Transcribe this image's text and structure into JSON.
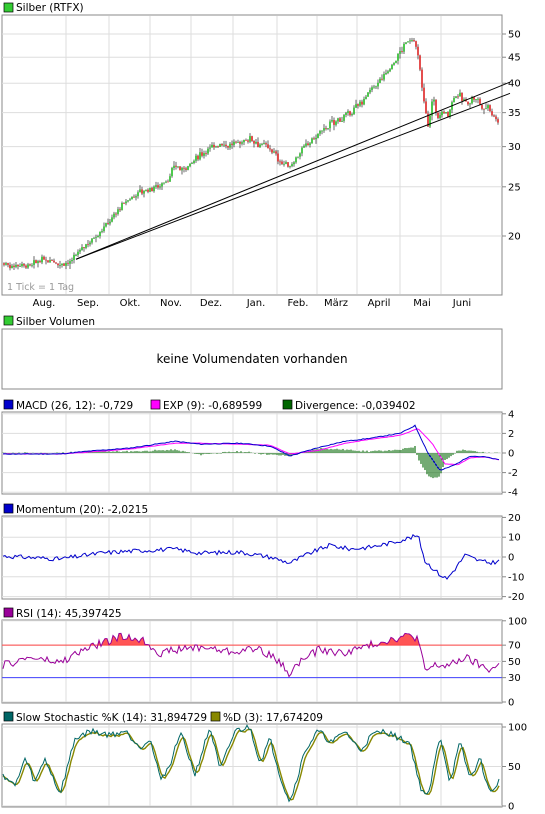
{
  "price": {
    "legend_label": "Silber (RTFX)",
    "legend_color": "#33cc33",
    "tick_note": "1 Tick = 1 Tag",
    "y_ticks": [
      "50",
      "45",
      "40",
      "35",
      "30",
      "25",
      "20"
    ],
    "x_labels": [
      "Aug.",
      "Sep.",
      "Okt.",
      "Nov.",
      "Dez.",
      "Jan.",
      "Feb.",
      "März",
      "April",
      "Mai",
      "Juni"
    ]
  },
  "volume": {
    "legend_label": "Silber Volumen",
    "legend_color": "#33cc33",
    "message": "keine Volumendaten vorhanden"
  },
  "macd": {
    "legend_macd": "MACD (26, 12): -0,729",
    "legend_exp": "EXP (9): -0,689599",
    "legend_div": "Divergence: -0,039402",
    "y_ticks": [
      "4",
      "2",
      "0",
      "-2",
      "-4"
    ]
  },
  "momentum": {
    "legend_label": "Momentum (20): -2,0215",
    "y_ticks": [
      "20",
      "10",
      "0",
      "-10",
      "-20"
    ]
  },
  "rsi": {
    "legend_label": "RSI (14): 45,397425",
    "y_ticks": [
      "100",
      "70",
      "50",
      "30",
      "0"
    ]
  },
  "stoch": {
    "legend_k": "Slow Stochastic %K (14): 31,894729",
    "legend_d": "%D (3): 17,674209",
    "y_ticks": [
      "100",
      "50",
      "0"
    ]
  },
  "chart_data": [
    {
      "type": "line",
      "style": "ohlc",
      "title": "Silber (RTFX)",
      "x": [
        "Aug.",
        "Sep.",
        "Okt.",
        "Nov.",
        "Dez.",
        "Jan.",
        "Feb.",
        "März",
        "April",
        "Mai",
        "Juni"
      ],
      "series": [
        {
          "name": "Silber (RTFX)",
          "values": [
            18.0,
            19.5,
            23.0,
            27.0,
            29.5,
            30.0,
            28.5,
            34.0,
            42.0,
            36.0,
            35.5
          ]
        }
      ],
      "ylim": [
        16,
        53
      ],
      "y_scale": "log",
      "last_value": 34.0
    },
    {
      "type": "line",
      "title": "MACD",
      "series": [
        {
          "name": "MACD (26, 12)",
          "last": -0.729,
          "color": "#0000cc"
        },
        {
          "name": "EXP (9)",
          "last": -0.689599,
          "color": "#ff00ff"
        },
        {
          "name": "Divergence",
          "last": -0.039402,
          "color": "#006600"
        }
      ],
      "ylim": [
        -4,
        4
      ]
    },
    {
      "type": "line",
      "title": "Momentum (20)",
      "series": [
        {
          "name": "Momentum (20)",
          "last": -2.0215,
          "color": "#0000cc"
        }
      ],
      "ylim": [
        -20,
        20
      ]
    },
    {
      "type": "line",
      "title": "RSI (14)",
      "series": [
        {
          "name": "RSI (14)",
          "last": 45.397425,
          "color": "#990099"
        }
      ],
      "ylim": [
        0,
        100
      ],
      "reference_lines": [
        70,
        30
      ]
    },
    {
      "type": "line",
      "title": "Slow Stochastic",
      "series": [
        {
          "name": "Slow Stochastic %K (14)",
          "last": 31.894729,
          "color": "#006666"
        },
        {
          "name": "%D (3)",
          "last": 17.674209,
          "color": "#888800"
        }
      ],
      "ylim": [
        0,
        100
      ]
    }
  ]
}
